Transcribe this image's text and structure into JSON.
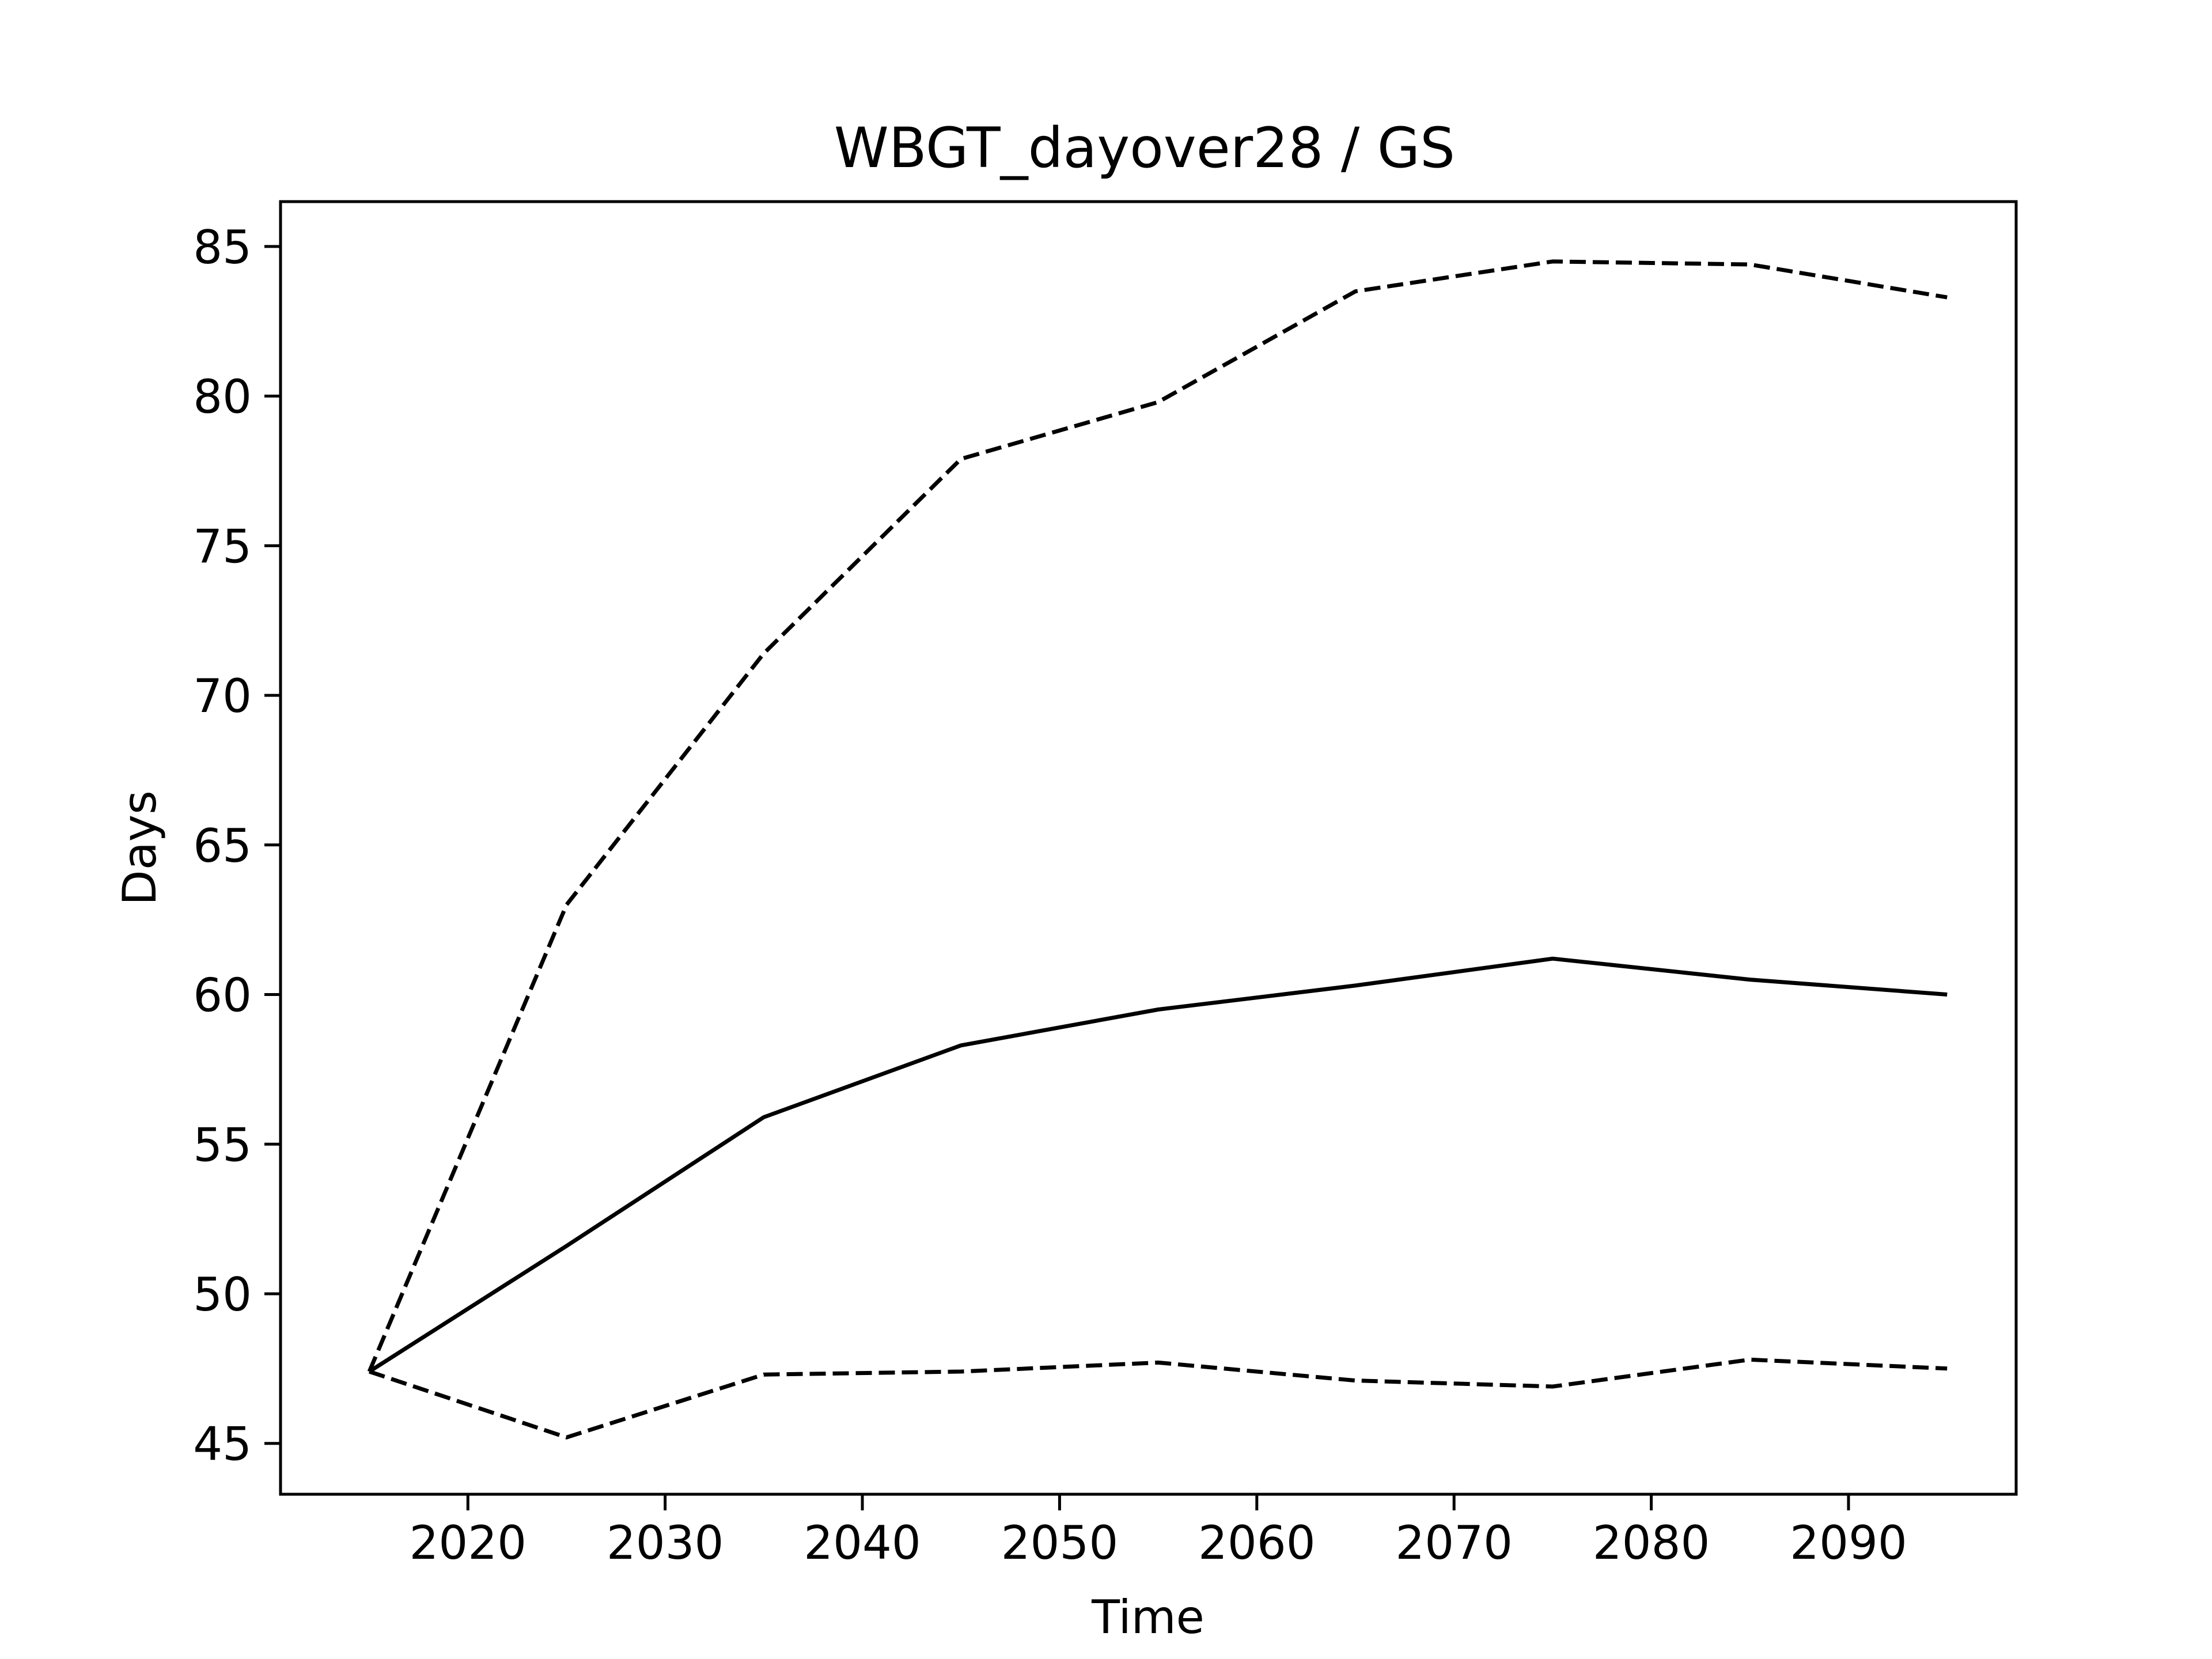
{
  "chart_data": {
    "type": "line",
    "title": "WBGT_dayover28 / GS",
    "xlabel": "Time",
    "ylabel": "Days",
    "xlim": [
      2010.5,
      2098.5
    ],
    "ylim": [
      43.3,
      86.5
    ],
    "grid": false,
    "xticks": [
      2020,
      2030,
      2040,
      2050,
      2060,
      2070,
      2080,
      2090
    ],
    "yticks": [
      45,
      50,
      55,
      60,
      65,
      70,
      75,
      80,
      85
    ],
    "x": [
      2015,
      2025,
      2035,
      2045,
      2055,
      2065,
      2075,
      2085,
      2095
    ],
    "series": [
      {
        "style": "solid",
        "color": "#000000",
        "values": [
          47.4,
          51.6,
          55.9,
          58.3,
          59.5,
          60.3,
          61.2,
          60.5,
          60.0
        ]
      },
      {
        "style": "dashed",
        "color": "#000000",
        "values": [
          47.4,
          63.0,
          71.4,
          77.9,
          79.8,
          83.5,
          84.5,
          84.4,
          83.3
        ]
      },
      {
        "style": "dashed",
        "color": "#000000",
        "values": [
          47.4,
          45.2,
          47.3,
          47.4,
          47.7,
          47.1,
          46.9,
          47.8,
          47.5
        ]
      }
    ]
  }
}
